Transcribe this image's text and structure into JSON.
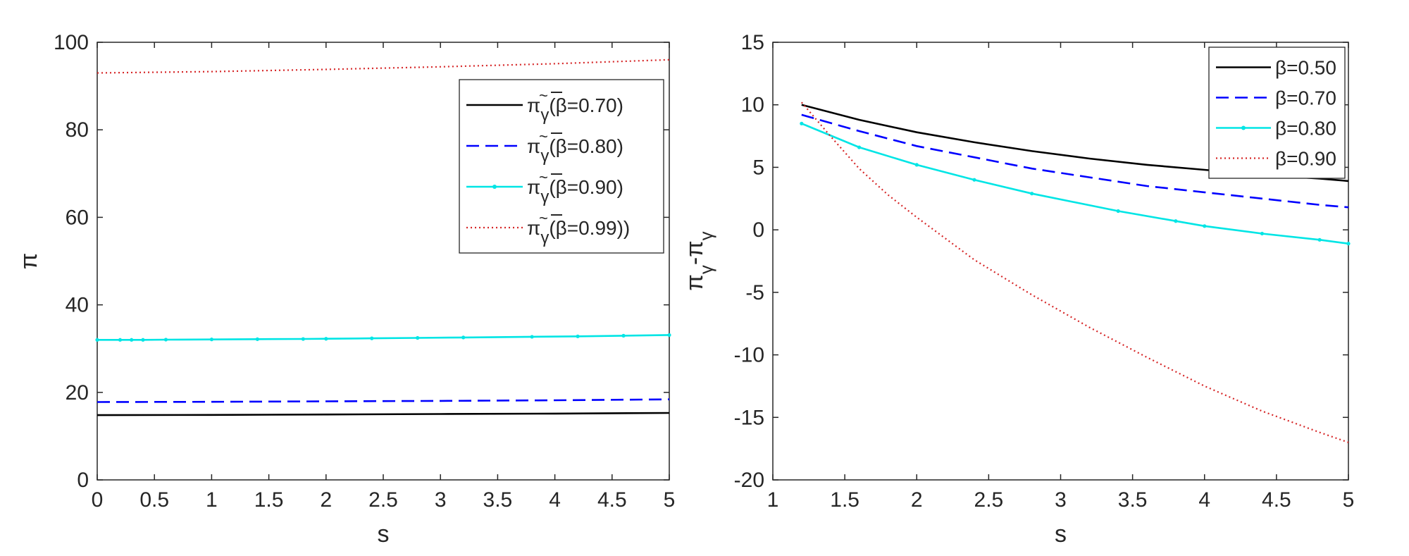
{
  "chart_data": [
    {
      "type": "line",
      "title": "",
      "xlabel": "s",
      "ylabel": "π",
      "xlim": [
        0,
        5
      ],
      "ylim": [
        0,
        100
      ],
      "xticks": [
        "0",
        "0.5",
        "1",
        "1.5",
        "2",
        "2.5",
        "3",
        "3.5",
        "4",
        "4.5",
        "5"
      ],
      "yticks": [
        "0",
        "20",
        "40",
        "60",
        "80",
        "100"
      ],
      "legend_position": "top-right",
      "series": [
        {
          "name": "π̃γ(β=0.70)",
          "legend_prefix": "π",
          "legend_sub": "γ",
          "legend_suffix": "(β=0.70)",
          "style": "solid",
          "color": "#000000",
          "x": [
            0,
            1,
            2,
            3,
            4,
            5
          ],
          "values": [
            14.8,
            14.85,
            14.95,
            15.05,
            15.15,
            15.3
          ]
        },
        {
          "name": "π̃γ(β=0.80)",
          "legend_prefix": "π",
          "legend_sub": "γ",
          "legend_suffix": "(β=0.80)",
          "style": "dashed",
          "color": "#0000ff",
          "x": [
            0,
            1,
            2,
            3,
            4,
            5
          ],
          "values": [
            17.8,
            17.85,
            17.95,
            18.05,
            18.2,
            18.4
          ]
        },
        {
          "name": "π̃γ(β=0.90)",
          "legend_prefix": "π",
          "legend_sub": "γ",
          "legend_suffix": "(β=0.90)",
          "style": "marker",
          "color": "#00e5e5",
          "x": [
            0,
            0.2,
            0.3,
            0.4,
            0.6,
            1,
            1.4,
            1.8,
            2,
            2.4,
            2.8,
            3.2,
            3.8,
            4.2,
            4.6,
            5
          ],
          "values": [
            32.0,
            32.0,
            32.0,
            32.0,
            32.05,
            32.1,
            32.15,
            32.2,
            32.25,
            32.35,
            32.45,
            32.55,
            32.7,
            32.8,
            32.95,
            33.1
          ]
        },
        {
          "name": "π̃γ(β=0.99))",
          "legend_prefix": "π",
          "legend_sub": "γ",
          "legend_suffix": "(β=0.99))",
          "style": "dotted",
          "color": "#d62728",
          "x": [
            0,
            1,
            2,
            3,
            4,
            5
          ],
          "values": [
            93.0,
            93.3,
            93.8,
            94.4,
            95.1,
            96.0
          ]
        }
      ]
    },
    {
      "type": "line",
      "title": "",
      "xlabel": "s",
      "ylabel_prefix": "π",
      "ylabel_sub": "γ",
      "ylabel_mid": "-π",
      "ylabel_sub2": "γ",
      "xlim": [
        1,
        5
      ],
      "ylim": [
        -20,
        15
      ],
      "xticks": [
        "1",
        "1.5",
        "2",
        "2.5",
        "3",
        "3.5",
        "4",
        "4.5",
        "5"
      ],
      "yticks": [
        "-20",
        "-15",
        "-10",
        "-5",
        "0",
        "5",
        "10",
        "15"
      ],
      "legend_position": "top-right",
      "series": [
        {
          "name": "β=0.50",
          "style": "solid",
          "color": "#000000",
          "x": [
            1.2,
            1.6,
            2,
            2.4,
            2.8,
            3.2,
            3.6,
            4,
            4.4,
            4.8,
            5
          ],
          "values": [
            10.0,
            8.8,
            7.8,
            7.0,
            6.3,
            5.7,
            5.2,
            4.8,
            4.4,
            4.1,
            3.9
          ]
        },
        {
          "name": "β=0.70",
          "style": "dashed",
          "color": "#0000ff",
          "x": [
            1.2,
            1.6,
            2,
            2.4,
            2.8,
            3.2,
            3.6,
            4,
            4.4,
            4.8,
            5
          ],
          "values": [
            9.2,
            7.9,
            6.7,
            5.8,
            4.9,
            4.2,
            3.5,
            3.0,
            2.5,
            2.0,
            1.8
          ]
        },
        {
          "name": "β=0.80",
          "style": "marker",
          "color": "#00e5e5",
          "x": [
            1.2,
            1.6,
            2,
            2.4,
            2.8,
            3.4,
            3.8,
            4,
            4.4,
            4.8,
            5
          ],
          "values": [
            8.5,
            6.6,
            5.2,
            4.0,
            2.9,
            1.5,
            0.7,
            0.3,
            -0.3,
            -0.8,
            -1.1
          ]
        },
        {
          "name": "β=0.90",
          "style": "dotted",
          "color": "#d62728",
          "x": [
            1.2,
            1.4,
            1.6,
            1.8,
            2,
            2.4,
            2.8,
            3.2,
            3.6,
            4,
            4.4,
            4.8,
            5
          ],
          "values": [
            10.2,
            7.5,
            4.9,
            2.8,
            1.0,
            -2.4,
            -5.2,
            -7.8,
            -10.2,
            -12.5,
            -14.5,
            -16.2,
            -17.0
          ]
        }
      ]
    }
  ]
}
